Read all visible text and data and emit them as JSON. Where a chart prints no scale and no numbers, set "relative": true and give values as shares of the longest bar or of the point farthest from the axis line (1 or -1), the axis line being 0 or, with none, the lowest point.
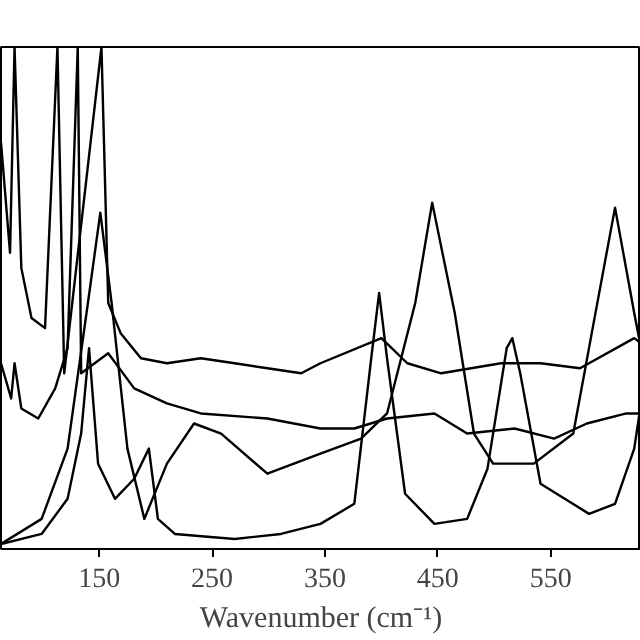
{
  "chart_data": {
    "type": "line",
    "relative": true,
    "xlabel": "Wavenumber (cm⁻¹)",
    "xlim": [
      63,
      630
    ],
    "xticks": [
      150,
      250,
      350,
      450,
      550
    ],
    "grid": false,
    "marker": "none",
    "line_style": "solid",
    "series": [
      {
        "color": "#000000",
        "x": [
          63,
          71,
          75,
          81,
          90,
          102,
          113,
          119,
          152,
          158,
          169,
          187,
          210,
          240,
          270,
          299,
          329,
          346,
          400,
          423,
          453,
          506,
          541,
          576,
          624,
          630
        ],
        "values": [
          0.81,
          0.59,
          1.0,
          0.56,
          0.46,
          0.44,
          1.0,
          0.35,
          1.0,
          0.49,
          0.43,
          0.38,
          0.37,
          0.38,
          0.37,
          0.36,
          0.35,
          0.37,
          0.42,
          0.37,
          0.35,
          0.37,
          0.37,
          0.36,
          0.42,
          0.41
        ]
      },
      {
        "color": "#000000",
        "x": [
          63,
          72,
          75,
          81,
          96,
          111,
          122,
          131,
          134,
          158,
          181,
          210,
          240,
          299,
          346,
          376,
          405,
          447,
          476,
          518,
          553,
          582,
          617,
          630
        ],
        "values": [
          0.37,
          0.3,
          0.37,
          0.28,
          0.26,
          0.32,
          0.4,
          1.0,
          0.35,
          0.39,
          0.32,
          0.29,
          0.27,
          0.26,
          0.24,
          0.24,
          0.26,
          0.27,
          0.23,
          0.24,
          0.22,
          0.25,
          0.27,
          0.27
        ]
      },
      {
        "color": "#000000",
        "x": [
          63,
          99,
          122,
          134,
          141,
          149,
          164,
          181,
          194,
          202,
          217,
          270,
          311,
          346,
          376,
          391,
          398,
          405,
          421,
          447,
          476,
          494,
          511,
          516,
          523,
          541,
          584,
          607,
          624,
          630
        ],
        "values": [
          0.01,
          0.03,
          0.1,
          0.23,
          0.4,
          0.17,
          0.1,
          0.14,
          0.2,
          0.06,
          0.03,
          0.02,
          0.03,
          0.05,
          0.09,
          0.38,
          0.51,
          0.38,
          0.11,
          0.05,
          0.06,
          0.16,
          0.4,
          0.42,
          0.35,
          0.13,
          0.07,
          0.09,
          0.2,
          0.29
        ]
      },
      {
        "color": "#000000",
        "x": [
          63,
          99,
          122,
          140,
          151,
          161,
          175,
          190,
          210,
          234,
          258,
          299,
          346,
          382,
          405,
          430,
          445,
          465,
          482,
          499,
          535,
          570,
          588,
          607,
          624,
          630
        ],
        "values": [
          0.01,
          0.06,
          0.2,
          0.49,
          0.67,
          0.49,
          0.2,
          0.06,
          0.17,
          0.25,
          0.23,
          0.15,
          0.19,
          0.22,
          0.27,
          0.49,
          0.69,
          0.47,
          0.23,
          0.17,
          0.17,
          0.23,
          0.45,
          0.68,
          0.47,
          0.4
        ]
      }
    ]
  }
}
